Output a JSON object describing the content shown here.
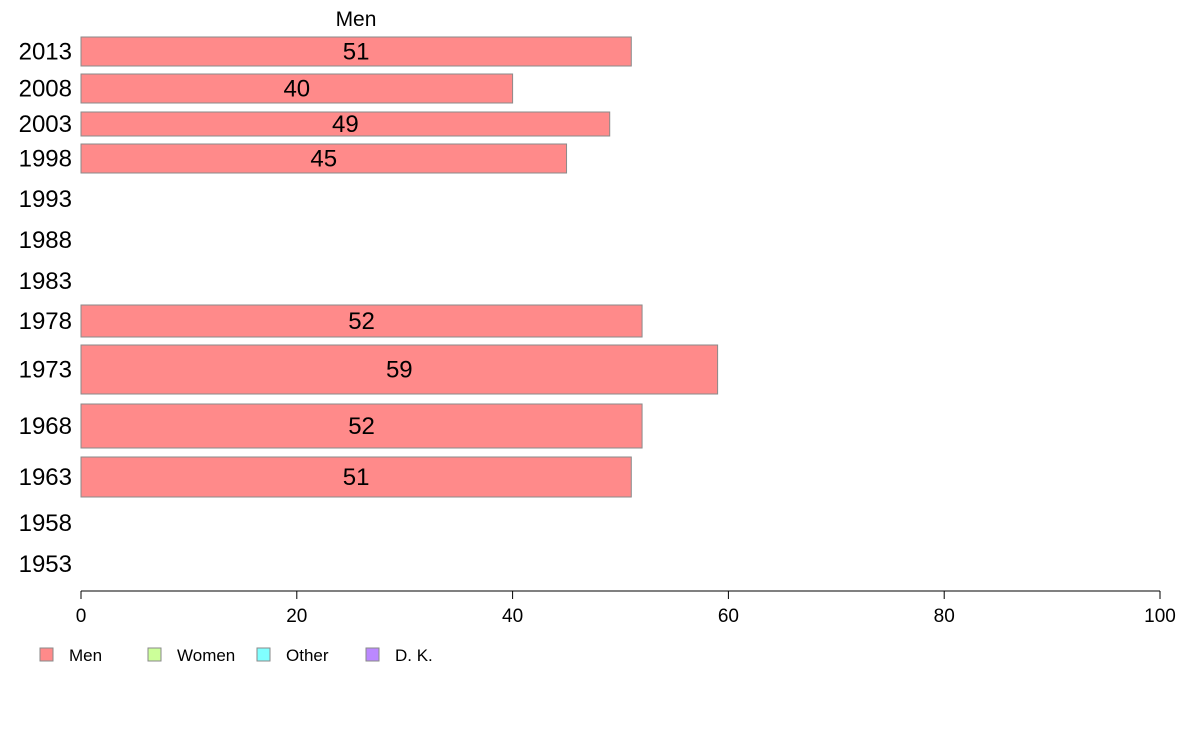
{
  "chart_data": {
    "type": "bar",
    "orientation": "horizontal",
    "series_title": "Men",
    "categories": [
      "2013",
      "2008",
      "2003",
      "1998",
      "1993",
      "1988",
      "1983",
      "1978",
      "1973",
      "1968",
      "1963",
      "1958",
      "1953"
    ],
    "series": [
      {
        "name": "Men",
        "color": "#ff8a8a",
        "values": [
          51,
          40,
          49,
          45,
          null,
          null,
          null,
          52,
          59,
          52,
          51,
          null,
          null
        ]
      }
    ],
    "data_labels": [
      "51",
      "40",
      "49",
      "45",
      "",
      "",
      "",
      "52",
      "59",
      "52",
      "51",
      "",
      ""
    ],
    "xlim": [
      0,
      100
    ],
    "xticks": [
      "0",
      "20",
      "40",
      "60",
      "80",
      "100"
    ],
    "grid": false,
    "legend_position": "bottom-left",
    "legend": [
      {
        "label": "Men",
        "color": "#ff8a8a"
      },
      {
        "label": "Women",
        "color": "#ccff99"
      },
      {
        "label": "Other",
        "color": "#80ffff"
      },
      {
        "label": "D. K.",
        "color": "#bb88ff"
      }
    ]
  }
}
